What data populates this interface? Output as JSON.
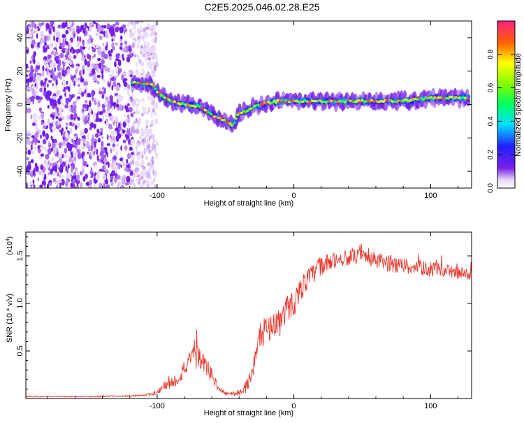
{
  "title": "C2E5.2025.046.02.28.E25",
  "chart_data": [
    {
      "type": "heatmap",
      "xlabel": "Height of straight line (km)",
      "ylabel": "Frequency (Hz)",
      "xlim": [
        -196,
        130
      ],
      "ylim": [
        -50,
        50
      ],
      "xticks": [
        -100,
        0,
        100
      ],
      "yticks": [
        -40,
        -20,
        0,
        20,
        40
      ],
      "colorbar": {
        "label": "Normalized spectral amplitude",
        "range": [
          0,
          1
        ],
        "ticks": [
          0.0,
          0.2,
          0.4,
          0.6,
          0.8
        ]
      },
      "ridge": [
        {
          "x": -118,
          "y": 13
        },
        {
          "x": -104,
          "y": 12
        },
        {
          "x": -98,
          "y": 6
        },
        {
          "x": -90,
          "y": 2
        },
        {
          "x": -80,
          "y": 0
        },
        {
          "x": -70,
          "y": -1
        },
        {
          "x": -60,
          "y": -6
        },
        {
          "x": -50,
          "y": -10
        },
        {
          "x": -45,
          "y": -13
        },
        {
          "x": -40,
          "y": -5
        },
        {
          "x": -35,
          "y": -4
        },
        {
          "x": -28,
          "y": -1
        },
        {
          "x": -20,
          "y": 1
        },
        {
          "x": -10,
          "y": 2
        },
        {
          "x": 0,
          "y": 2
        },
        {
          "x": 20,
          "y": 2
        },
        {
          "x": 40,
          "y": 2
        },
        {
          "x": 60,
          "y": 2
        },
        {
          "x": 80,
          "y": 2
        },
        {
          "x": 90,
          "y": 3
        },
        {
          "x": 100,
          "y": 4
        },
        {
          "x": 115,
          "y": 4
        },
        {
          "x": 128,
          "y": 4
        }
      ]
    },
    {
      "type": "line",
      "xlabel": "Height of straight line (km)",
      "ylabel": "SNR (10 * v/v)",
      "yscale_label": "(x10",
      "yscale_exp": "4",
      "xlim": [
        -196,
        130
      ],
      "ylim": [
        0,
        1.75
      ],
      "xticks": [
        -100,
        0,
        100
      ],
      "yticks": [
        0.5,
        1.0,
        1.5
      ],
      "series": [
        {
          "color": "#e8382e",
          "x": [
            -196,
            -150,
            -110,
            -100,
            -95,
            -85,
            -80,
            -75,
            -70,
            -65,
            -60,
            -55,
            -50,
            -45,
            -40,
            -35,
            -30,
            -25,
            -20,
            -15,
            -10,
            -5,
            0,
            5,
            10,
            15,
            20,
            30,
            40,
            50,
            60,
            70,
            80,
            90,
            100,
            110,
            120,
            130
          ],
          "values": [
            0.02,
            0.02,
            0.03,
            0.06,
            0.13,
            0.2,
            0.32,
            0.4,
            0.45,
            0.35,
            0.25,
            0.1,
            0.05,
            0.05,
            0.06,
            0.12,
            0.3,
            0.65,
            0.72,
            0.78,
            0.8,
            0.95,
            1.0,
            1.15,
            1.25,
            1.32,
            1.4,
            1.45,
            1.48,
            1.5,
            1.45,
            1.42,
            1.4,
            1.38,
            1.36,
            1.35,
            1.32,
            1.3
          ],
          "noise": [
            0.005,
            0.006,
            0.01,
            0.02,
            0.05,
            0.07,
            0.1,
            0.12,
            0.13,
            0.1,
            0.08,
            0.03,
            0.02,
            0.02,
            0.03,
            0.06,
            0.1,
            0.14,
            0.14,
            0.14,
            0.15,
            0.15,
            0.14,
            0.13,
            0.12,
            0.11,
            0.1,
            0.09,
            0.08,
            0.08,
            0.09,
            0.09,
            0.09,
            0.08,
            0.08,
            0.07,
            0.07,
            0.06
          ]
        }
      ]
    }
  ]
}
